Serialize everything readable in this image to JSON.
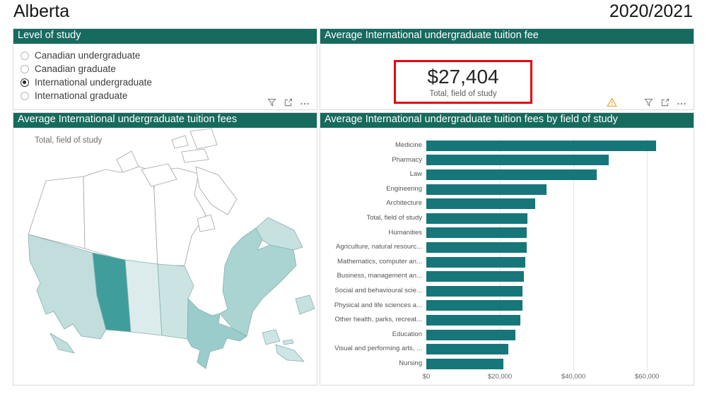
{
  "page": {
    "title": "Alberta",
    "period": "2020/2021"
  },
  "colors": {
    "header_teal": "#176a5e",
    "bar_teal": "#17767a",
    "card_border_red": "#e30613",
    "warning_amber": "#e3a93c",
    "toolbar_gray": "#7a7a7a"
  },
  "level_of_study": {
    "header": "Level of study",
    "options": [
      {
        "label": "Canadian undergraduate",
        "selected": false
      },
      {
        "label": "Canadian graduate",
        "selected": false
      },
      {
        "label": "International undergraduate",
        "selected": true
      },
      {
        "label": "International graduate",
        "selected": false
      }
    ],
    "toolbar_icons": [
      "filter-icon",
      "focus-mode-icon",
      "more-options-icon"
    ]
  },
  "tuition_card": {
    "header": "Average International undergraduate tuition fee",
    "value": "$27,404",
    "caption": "Total, field of study",
    "toolbar_icons": [
      "warning-icon",
      "filter-icon",
      "focus-mode-icon",
      "more-options-icon"
    ]
  },
  "map_panel": {
    "header": "Average International undergraduate tuition fees",
    "label": "Total, field of study",
    "regions": [
      {
        "name": "yukon",
        "fill": "#ffffff"
      },
      {
        "name": "northwest-territories",
        "fill": "#ffffff"
      },
      {
        "name": "nunavut",
        "fill": "#ffffff"
      },
      {
        "name": "parry-islands",
        "fill": "#ffffff"
      },
      {
        "name": "banks-island",
        "fill": "#ffffff"
      },
      {
        "name": "victoria-island",
        "fill": "#ffffff"
      },
      {
        "name": "ellesmere-island",
        "fill": "#ffffff"
      },
      {
        "name": "devon-island",
        "fill": "#ffffff"
      },
      {
        "name": "baffin-island",
        "fill": "#ffffff"
      },
      {
        "name": "southampton-island",
        "fill": "#ffffff"
      },
      {
        "name": "british-columbia",
        "fill": "#c1dedd"
      },
      {
        "name": "vancouver-island",
        "fill": "#c1dedd"
      },
      {
        "name": "alberta",
        "fill": "#3f9e9c"
      },
      {
        "name": "saskatchewan",
        "fill": "#dcecec"
      },
      {
        "name": "manitoba",
        "fill": "#cbe4e3"
      },
      {
        "name": "ontario",
        "fill": "#9acccb"
      },
      {
        "name": "quebec",
        "fill": "#a9d4d2"
      },
      {
        "name": "labrador",
        "fill": "#c6e1e0"
      },
      {
        "name": "newfoundland-island",
        "fill": "#c6e1e0"
      },
      {
        "name": "new-brunswick",
        "fill": "#cde5e4"
      },
      {
        "name": "nova-scotia",
        "fill": "#cde5e4"
      },
      {
        "name": "prince-edward-island",
        "fill": "#cde5e4"
      }
    ]
  },
  "chart_data": {
    "type": "bar",
    "orientation": "horizontal",
    "title": "Average International undergraduate tuition fees by field of study",
    "categories": [
      "Medicine",
      "Pharmacy",
      "Law",
      "Engineering",
      "Architecture",
      "Total, field of study",
      "Humanities",
      "Agriculture, natural resourc...",
      "Mathematics, computer an...",
      "Business, management an...",
      "Social and behavioural scie...",
      "Physical and life sciences a...",
      "Other health, parks, recreat...",
      "Education",
      "Visual and performing arts, ...",
      "Nursing"
    ],
    "values": [
      62500,
      49500,
      46300,
      32700,
      29600,
      27404,
      27300,
      27200,
      27000,
      26500,
      26200,
      26100,
      25500,
      24300,
      22200,
      20900
    ],
    "xlabel": "",
    "ylabel": "",
    "xlim": [
      0,
      71500
    ],
    "x_ticks": [
      {
        "label": "$0",
        "value": 0
      },
      {
        "label": "$20,000",
        "value": 20000
      },
      {
        "label": "$40,000",
        "value": 40000
      },
      {
        "label": "$60,000",
        "value": 60000
      }
    ],
    "grid": true,
    "legend": false,
    "bar_color": "#17767a"
  }
}
